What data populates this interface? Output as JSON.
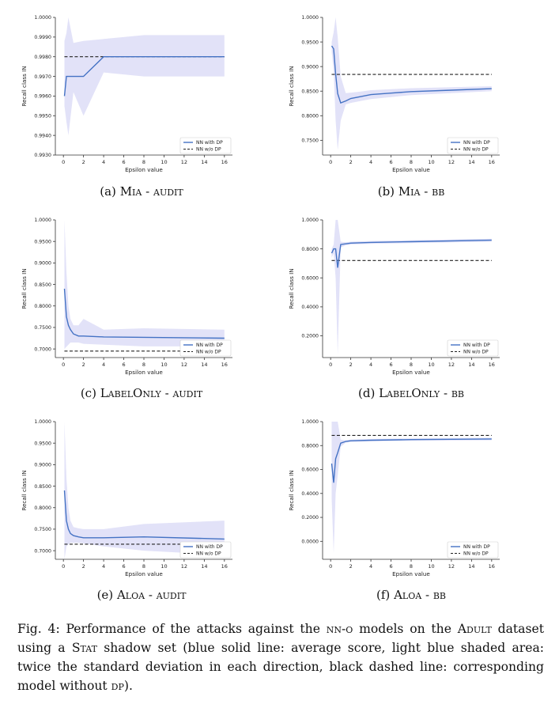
{
  "figure": {
    "caption": {
      "label": "Fig. 4:",
      "t1": "Performance of the attacks against the",
      "sc1": "nn-o",
      "t2": "models on the",
      "sc2": "Adult",
      "t3": "dataset using a",
      "sc3": "Stat",
      "t4": "shadow set (blue solid line: average score, light blue shaded area: twice the standard deviation in each direction, black dashed line: corresponding model without",
      "sc4": "dp",
      "t5": ")."
    }
  },
  "colors": {
    "line": "#4472c4",
    "band": "#e2e2f8",
    "dashed": "#222222",
    "axis": "#333333"
  },
  "chart_data": [
    {
      "id": "a",
      "type": "line",
      "caption": {
        "letter": "(a)",
        "attack": "Mia",
        "sep": "-",
        "setting": "audit"
      },
      "xlabel": "Epsilon value",
      "ylabel": "Recall class IN",
      "xlim": [
        -0.8,
        16.8
      ],
      "ylim": [
        0.993,
        1.0
      ],
      "xticks": [
        0,
        2,
        4,
        6,
        8,
        10,
        12,
        14,
        16
      ],
      "yticks": [
        0.993,
        0.994,
        0.995,
        0.996,
        0.997,
        0.998,
        0.999,
        1.0
      ],
      "ytick_labels": [
        "0.9930",
        "0.9940",
        "0.9950",
        "0.9960",
        "0.9970",
        "0.9980",
        "0.9990",
        "1.0000"
      ],
      "legend": {
        "with": "NN with DP",
        "without": "NN w/o DP",
        "position": "lower-right"
      },
      "x": [
        0.1,
        0.3,
        0.5,
        1,
        2,
        4,
        8,
        16
      ],
      "mean": [
        0.996,
        0.997,
        0.997,
        0.997,
        0.997,
        0.998,
        0.998,
        0.998
      ],
      "upper": [
        0.9988,
        0.9992,
        1.0,
        0.9987,
        0.9988,
        0.9989,
        0.9991,
        0.9991
      ],
      "lower": [
        0.9955,
        0.9947,
        0.994,
        0.9962,
        0.995,
        0.9972,
        0.997,
        0.997
      ],
      "baseline": 0.998
    },
    {
      "id": "b",
      "type": "line",
      "caption": {
        "letter": "(b)",
        "attack": "Mia",
        "sep": "-",
        "setting": "bb"
      },
      "xlabel": "Epsilon value",
      "ylabel": "Recall class IN",
      "xlim": [
        -0.8,
        16.8
      ],
      "ylim": [
        0.72,
        1.0
      ],
      "xticks": [
        0,
        2,
        4,
        6,
        8,
        10,
        12,
        14,
        16
      ],
      "yticks": [
        0.75,
        0.8,
        0.85,
        0.9,
        0.95,
        1.0
      ],
      "ytick_labels": [
        "0.7500",
        "0.8000",
        "0.8500",
        "0.9000",
        "0.9500",
        "1.0000"
      ],
      "legend": {
        "with": "NN with DP",
        "without": "NN w/o DP",
        "position": "lower-right"
      },
      "x": [
        0.1,
        0.3,
        0.5,
        0.7,
        1,
        1.5,
        2,
        3,
        4,
        6,
        8,
        12,
        16
      ],
      "mean": [
        0.942,
        0.936,
        0.885,
        0.845,
        0.826,
        0.83,
        0.835,
        0.839,
        0.843,
        0.846,
        0.849,
        0.852,
        0.855
      ],
      "upper": [
        0.95,
        0.97,
        1.0,
        0.96,
        0.88,
        0.846,
        0.847,
        0.849,
        0.852,
        0.854,
        0.856,
        0.858,
        0.86
      ],
      "lower": [
        0.93,
        0.89,
        0.79,
        0.73,
        0.79,
        0.823,
        0.826,
        0.83,
        0.834,
        0.838,
        0.842,
        0.846,
        0.85
      ],
      "baseline": 0.884
    },
    {
      "id": "c",
      "type": "line",
      "caption": {
        "letter": "(c)",
        "attack": "LabelOnly",
        "sep": "-",
        "setting": "audit"
      },
      "xlabel": "Epsilon value",
      "ylabel": "Recall class IN",
      "xlim": [
        -0.8,
        16.8
      ],
      "ylim": [
        0.68,
        1.0
      ],
      "xticks": [
        0,
        2,
        4,
        6,
        8,
        10,
        12,
        14,
        16
      ],
      "yticks": [
        0.7,
        0.75,
        0.8,
        0.85,
        0.9,
        0.95,
        1.0
      ],
      "ytick_labels": [
        "0.7000",
        "0.7500",
        "0.8000",
        "0.8500",
        "0.9000",
        "0.9500",
        "1.0000"
      ],
      "legend": {
        "with": "NN with DP",
        "without": "NN w/o DP",
        "position": "lower-right"
      },
      "x": [
        0.1,
        0.3,
        0.5,
        0.7,
        1,
        1.5,
        2,
        4,
        8,
        16
      ],
      "mean": [
        0.84,
        0.775,
        0.755,
        0.745,
        0.735,
        0.73,
        0.73,
        0.728,
        0.727,
        0.725
      ],
      "upper": [
        1.0,
        0.88,
        0.8,
        0.77,
        0.755,
        0.755,
        0.77,
        0.745,
        0.748,
        0.745
      ],
      "lower": [
        0.7,
        0.705,
        0.71,
        0.715,
        0.715,
        0.715,
        0.712,
        0.71,
        0.706,
        0.706
      ],
      "baseline": 0.695
    },
    {
      "id": "d",
      "type": "line",
      "caption": {
        "letter": "(d)",
        "attack": "LabelOnly",
        "sep": "-",
        "setting": "bb"
      },
      "xlabel": "Epsilon value",
      "ylabel": "Recall class IN",
      "xlim": [
        -0.8,
        16.8
      ],
      "ylim": [
        0.05,
        1.0
      ],
      "xticks": [
        0,
        2,
        4,
        6,
        8,
        10,
        12,
        14,
        16
      ],
      "yticks": [
        0.2,
        0.4,
        0.6,
        0.8,
        1.0
      ],
      "ytick_labels": [
        "0.2000",
        "0.4000",
        "0.6000",
        "0.8000",
        "1.0000"
      ],
      "legend": {
        "with": "NN with DP",
        "without": "NN w/o DP",
        "position": "lower-right"
      },
      "x": [
        0.1,
        0.3,
        0.5,
        0.7,
        1,
        1.5,
        2,
        4,
        8,
        16
      ],
      "mean": [
        0.77,
        0.8,
        0.8,
        0.67,
        0.83,
        0.835,
        0.84,
        0.845,
        0.85,
        0.86
      ],
      "upper": [
        0.8,
        0.83,
        1.0,
        1.0,
        0.85,
        0.845,
        0.85,
        0.855,
        0.86,
        0.87
      ],
      "lower": [
        0.74,
        0.77,
        0.6,
        0.07,
        0.81,
        0.825,
        0.83,
        0.835,
        0.84,
        0.85
      ],
      "baseline": 0.72
    },
    {
      "id": "e",
      "type": "line",
      "caption": {
        "letter": "(e)",
        "attack": "Aloa",
        "sep": "-",
        "setting": "audit"
      },
      "xlabel": "Epsilon value",
      "ylabel": "Recall class IN",
      "xlim": [
        -0.8,
        16.8
      ],
      "ylim": [
        0.68,
        1.0
      ],
      "xticks": [
        0,
        2,
        4,
        6,
        8,
        10,
        12,
        14,
        16
      ],
      "yticks": [
        0.7,
        0.75,
        0.8,
        0.85,
        0.9,
        0.95,
        1.0
      ],
      "ytick_labels": [
        "0.7000",
        "0.7500",
        "0.8000",
        "0.8500",
        "0.9000",
        "0.9500",
        "1.0000"
      ],
      "legend": {
        "with": "NN with DP",
        "without": "NN w/o DP",
        "position": "lower-right"
      },
      "x": [
        0.1,
        0.3,
        0.5,
        0.7,
        1,
        1.5,
        2,
        4,
        8,
        16
      ],
      "mean": [
        0.84,
        0.77,
        0.75,
        0.74,
        0.735,
        0.732,
        0.73,
        0.73,
        0.732,
        0.727
      ],
      "upper": [
        1.0,
        0.87,
        0.8,
        0.77,
        0.755,
        0.752,
        0.75,
        0.75,
        0.762,
        0.77
      ],
      "lower": [
        0.68,
        0.71,
        0.715,
        0.718,
        0.718,
        0.718,
        0.717,
        0.71,
        0.7,
        0.69
      ],
      "baseline": 0.715
    },
    {
      "id": "f",
      "type": "line",
      "caption": {
        "letter": "(f)",
        "attack": "Aloa",
        "sep": "-",
        "setting": "bb"
      },
      "xlabel": "Epsilon value",
      "ylabel": "Recall class IN",
      "xlim": [
        -0.8,
        16.8
      ],
      "ylim": [
        -0.15,
        1.0
      ],
      "xticks": [
        0,
        2,
        4,
        6,
        8,
        10,
        12,
        14,
        16
      ],
      "yticks": [
        0.0,
        0.2,
        0.4,
        0.6,
        0.8,
        1.0
      ],
      "ytick_labels": [
        "0.0000",
        "0.2000",
        "0.4000",
        "0.6000",
        "0.8000",
        "1.0000"
      ],
      "legend": {
        "with": "NN with DP",
        "without": "NN w/o DP",
        "position": "lower-right"
      },
      "x": [
        0.1,
        0.3,
        0.5,
        0.7,
        1,
        1.5,
        2,
        4,
        8,
        16
      ],
      "mean": [
        0.65,
        0.49,
        0.69,
        0.74,
        0.82,
        0.835,
        0.84,
        0.845,
        0.85,
        0.855
      ],
      "upper": [
        1.0,
        1.0,
        1.0,
        1.0,
        0.85,
        0.845,
        0.85,
        0.855,
        0.86,
        0.865
      ],
      "lower": [
        0.35,
        -0.1,
        0.4,
        0.55,
        0.79,
        0.825,
        0.83,
        0.835,
        0.84,
        0.845
      ],
      "baseline": 0.885
    }
  ]
}
